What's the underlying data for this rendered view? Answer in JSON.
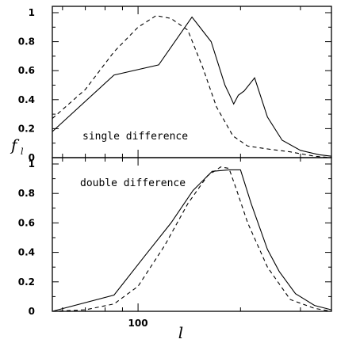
{
  "chart_data": {
    "type": "line",
    "xlabel": "l",
    "ylabel": "f",
    "ylabel_subscript": "l",
    "xscale": "log",
    "xlim": [
      56,
      370
    ],
    "xticks_labeled": [
      {
        "value": 100,
        "label": "100"
      }
    ],
    "ylim": [
      0,
      1.05
    ],
    "yticks": [
      {
        "value": 0,
        "label": "0"
      },
      {
        "value": 0.2,
        "label": "0.2"
      },
      {
        "value": 0.4,
        "label": "0.4"
      },
      {
        "value": 0.6,
        "label": "0.6"
      },
      {
        "value": 0.8,
        "label": "0.8"
      },
      {
        "value": 1,
        "label": "1"
      }
    ],
    "panels": [
      {
        "id": "top",
        "annotation": "single difference",
        "series": [
          {
            "style": "solid",
            "x": [
              56,
              85,
              115,
              144,
              164,
              180,
              186,
              191,
              197,
              205,
              220,
              240,
              265,
              300,
              340,
              370
            ],
            "y": [
              0.18,
              0.57,
              0.64,
              0.97,
              0.8,
              0.5,
              0.43,
              0.37,
              0.43,
              0.46,
              0.55,
              0.28,
              0.12,
              0.05,
              0.02,
              0.01
            ]
          },
          {
            "style": "dashed",
            "x": [
              56,
              70,
              85,
              100,
              113,
              125,
              140,
              155,
              170,
              190,
              210,
              240,
              280,
              330,
              370
            ],
            "y": [
              0.27,
              0.47,
              0.73,
              0.9,
              0.98,
              0.96,
              0.88,
              0.62,
              0.35,
              0.15,
              0.08,
              0.06,
              0.04,
              0.01,
              0.0
            ]
          }
        ]
      },
      {
        "id": "bottom",
        "annotation": "double difference",
        "series": [
          {
            "style": "solid",
            "x": [
              56,
              85,
              105,
              125,
              145,
              165,
              185,
              200,
              215,
              240,
              260,
              290,
              330,
              370
            ],
            "y": [
              0.0,
              0.11,
              0.38,
              0.6,
              0.82,
              0.95,
              0.96,
              0.96,
              0.73,
              0.42,
              0.27,
              0.12,
              0.04,
              0.01
            ]
          },
          {
            "style": "dashed",
            "x": [
              56,
              70,
              85,
              100,
              120,
              140,
              160,
              175,
              185,
              195,
              210,
              240,
              280,
              330,
              370
            ],
            "y": [
              0.0,
              0.01,
              0.05,
              0.17,
              0.45,
              0.73,
              0.92,
              0.98,
              0.97,
              0.82,
              0.6,
              0.3,
              0.08,
              0.02,
              0.0
            ]
          }
        ]
      }
    ]
  }
}
